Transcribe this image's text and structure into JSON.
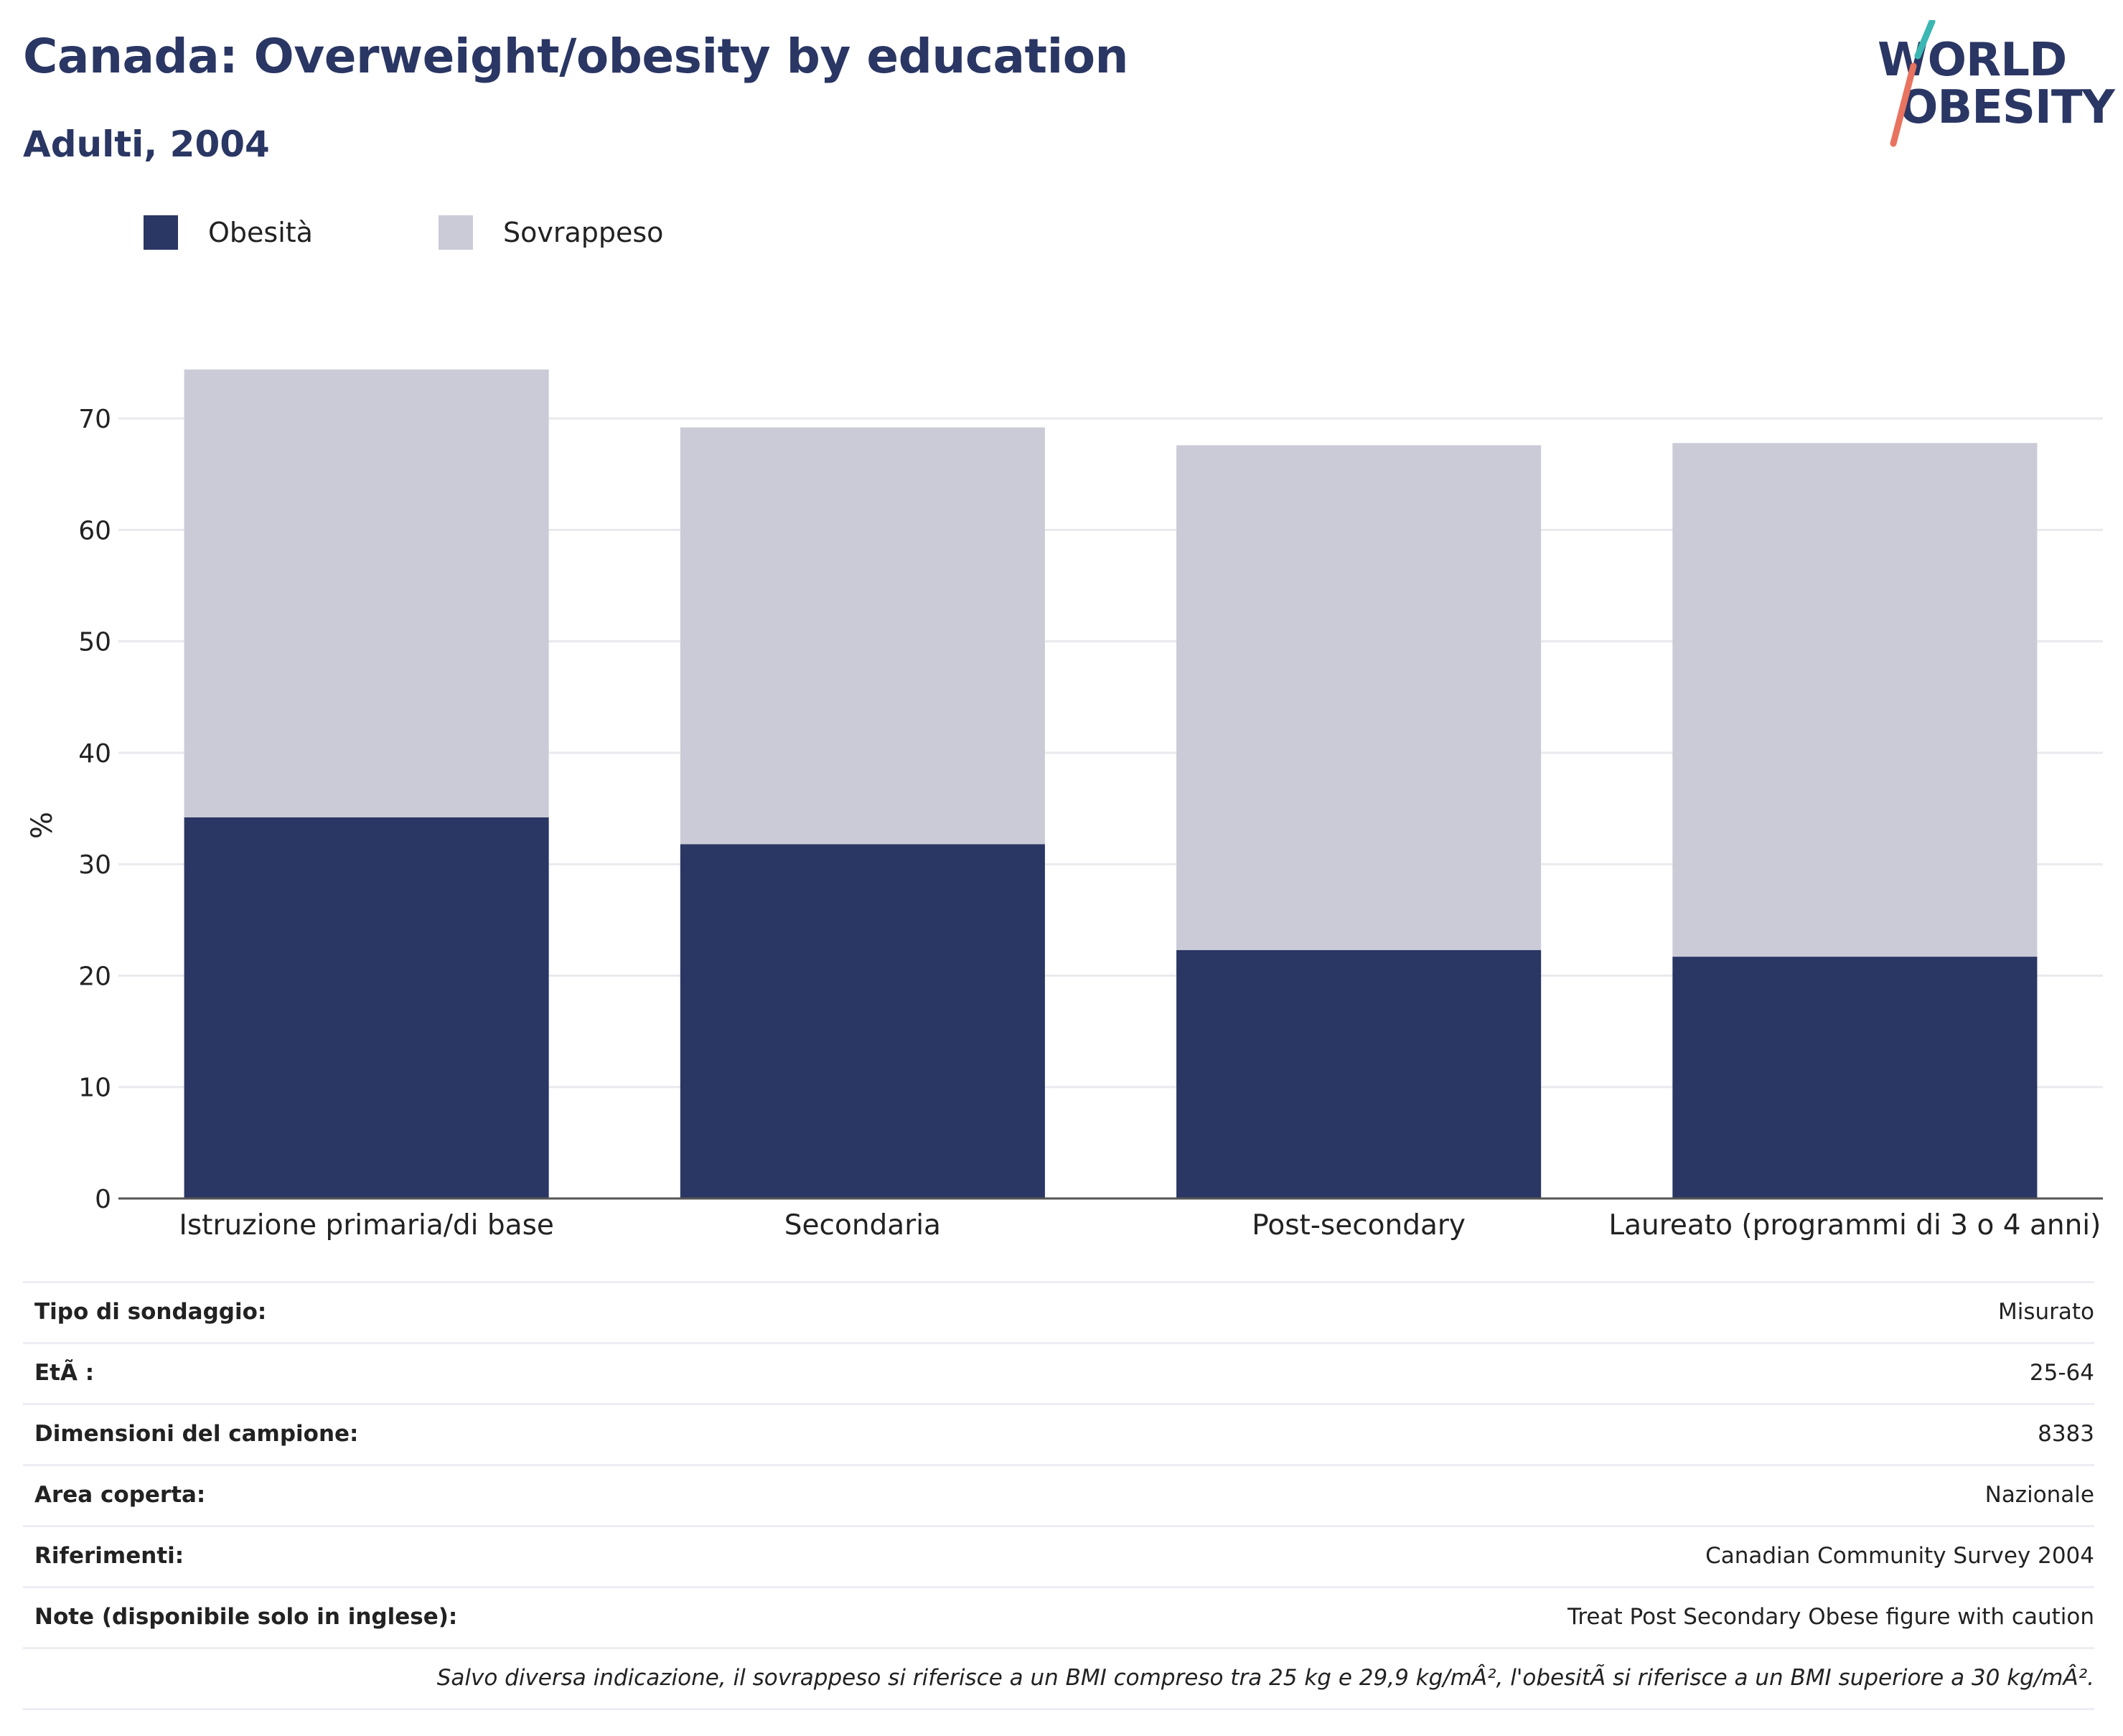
{
  "header": {
    "title": "Canada: Overweight/obesity by education",
    "subtitle": "Adulti, 2004"
  },
  "logo": {
    "line1": "WORLD",
    "line2": "OBESITY",
    "colors": {
      "text": "#2a3663",
      "slash_top": "#3bb7b3",
      "slash_bottom": "#e8735f"
    }
  },
  "legend": [
    {
      "label": "Obesità",
      "color": "#2a3663"
    },
    {
      "label": "Sovrappeso",
      "color": "#cacbd7"
    }
  ],
  "chart_data": {
    "type": "bar",
    "stacked": true,
    "categories": [
      "Istruzione primaria/di base",
      "Secondaria",
      "Post-secondary",
      "Laureato (programmi di 3 o 4 anni)"
    ],
    "series": [
      {
        "name": "Obesità",
        "values": [
          34.2,
          31.8,
          22.3,
          21.7
        ],
        "color": "#2a3663"
      },
      {
        "name": "Sovrappeso",
        "values": [
          40.2,
          37.4,
          45.3,
          46.1
        ],
        "color": "#cacbd7"
      }
    ],
    "ylabel": "%",
    "ylim": [
      0,
      76
    ],
    "yticks": [
      0,
      10,
      20,
      30,
      40,
      50,
      60,
      70
    ],
    "grid": true,
    "legend_position": "top-left"
  },
  "info": [
    {
      "key": "Tipo di sondaggio:",
      "value": "Misurato"
    },
    {
      "key": "EtÃ :",
      "value": "25-64"
    },
    {
      "key": "Dimensioni del campione:",
      "value": "8383"
    },
    {
      "key": "Area coperta:",
      "value": "Nazionale"
    },
    {
      "key": "Riferimenti:",
      "value": "Canadian Community Survey 2004"
    },
    {
      "key": "Note (disponibile solo in inglese):",
      "value": "Treat Post Secondary Obese figure with caution"
    }
  ],
  "footnote": "Salvo diversa indicazione, il sovrappeso si riferisce a un BMI compreso tra 25 kg e 29,9 kg/mÂ², l'obesitÃ  si riferisce a un BMI superiore a 30 kg/mÂ²."
}
